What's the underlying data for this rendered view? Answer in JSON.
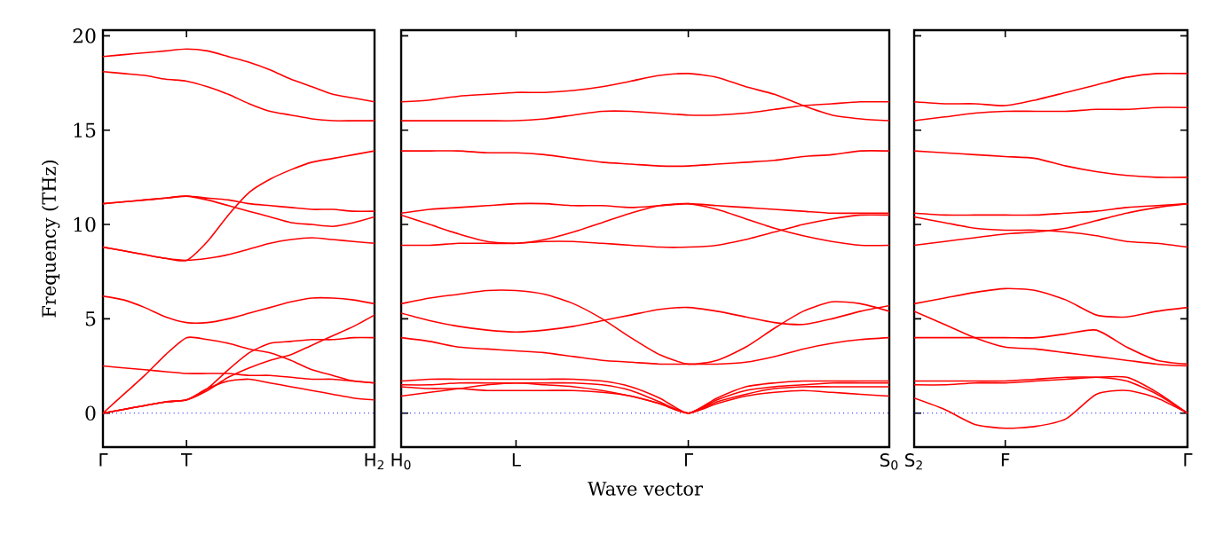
{
  "chart_data": [
    {
      "type": "line",
      "ylabel": "Frequency (THz)",
      "ylim": [
        -1.8,
        20.3
      ],
      "yticks": [
        0,
        5,
        10,
        15,
        20
      ],
      "categories": [
        "Γ",
        null,
        null,
        null,
        "T",
        null,
        null,
        null,
        null,
        null,
        null,
        null,
        null,
        "H$_{2}$"
      ],
      "ref_lines": [
        {
          "axis": "y",
          "value": 0,
          "color": "#0000ff",
          "line_style": "dotted"
        }
      ],
      "series": [
        {
          "color": "#ff0000",
          "values": [
            18.9,
            19.0,
            19.1,
            19.2,
            19.3,
            19.2,
            18.9,
            18.6,
            18.2,
            17.7,
            17.3,
            16.9,
            16.7,
            16.5
          ]
        },
        {
          "color": "#ff0000",
          "values": [
            18.1,
            18.0,
            17.9,
            17.7,
            17.6,
            17.3,
            16.9,
            16.4,
            16.0,
            15.8,
            15.6,
            15.5,
            15.5,
            15.5
          ]
        },
        {
          "color": "#ff0000",
          "values": [
            11.1,
            11.2,
            11.3,
            11.4,
            11.5,
            11.4,
            11.3,
            11.1,
            11.0,
            10.9,
            10.8,
            10.8,
            10.7,
            10.7
          ]
        },
        {
          "color": "#ff0000",
          "values": [
            11.1,
            11.2,
            11.3,
            11.4,
            11.5,
            11.3,
            11.0,
            10.7,
            10.4,
            10.1,
            10.0,
            9.9,
            10.1,
            10.4
          ]
        },
        {
          "color": "#ff0000",
          "values": [
            8.8,
            8.6,
            8.4,
            8.2,
            8.1,
            8.2,
            8.4,
            8.7,
            9.0,
            9.2,
            9.3,
            9.2,
            9.1,
            9.0
          ]
        },
        {
          "color": "#ff0000",
          "values": [
            8.8,
            8.6,
            8.4,
            8.2,
            8.1,
            9.1,
            10.5,
            11.7,
            12.4,
            12.9,
            13.3,
            13.5,
            13.7,
            13.9
          ]
        },
        {
          "color": "#ff0000",
          "values": [
            6.2,
            6.0,
            5.6,
            5.1,
            4.8,
            4.8,
            5.0,
            5.3,
            5.6,
            5.9,
            6.1,
            6.1,
            6.0,
            5.8
          ]
        },
        {
          "color": "#ff0000",
          "values": [
            2.5,
            2.4,
            2.3,
            2.2,
            2.1,
            2.1,
            2.1,
            2.0,
            2.0,
            1.9,
            1.8,
            1.8,
            1.7,
            1.6
          ]
        },
        {
          "color": "#ff0000",
          "values": [
            0,
            1.0,
            2.0,
            3.1,
            4.0,
            3.9,
            3.7,
            3.4,
            3.2,
            2.8,
            2.3,
            2.0,
            1.7,
            1.6
          ]
        },
        {
          "color": "#ff0000",
          "values": [
            0,
            0.2,
            0.4,
            0.6,
            0.7,
            1.3,
            2.3,
            3.2,
            3.7,
            3.8,
            3.9,
            3.9,
            4.0,
            4.0
          ]
        },
        {
          "color": "#ff0000",
          "values": [
            0,
            0.2,
            0.4,
            0.6,
            0.7,
            1.2,
            1.9,
            2.4,
            2.8,
            3.1,
            3.6,
            4.1,
            4.6,
            5.2
          ]
        },
        {
          "color": "#ff0000",
          "values": [
            0,
            0.2,
            0.4,
            0.6,
            0.7,
            1.3,
            1.7,
            1.8,
            1.6,
            1.4,
            1.2,
            1.0,
            0.8,
            0.7
          ]
        }
      ]
    },
    {
      "type": "line",
      "xlabel": "Wave vector",
      "ylim": [
        -1.8,
        20.3
      ],
      "yticks": [
        0,
        5,
        10,
        15,
        20
      ],
      "tick_labels": "x",
      "categories": [
        "H$_{0}$",
        null,
        null,
        null,
        "L",
        null,
        null,
        null,
        null,
        null,
        "Γ",
        null,
        null,
        null,
        null,
        null,
        null,
        "S$_{0}$"
      ],
      "ref_lines": [
        {
          "axis": "y",
          "value": 0,
          "color": "#0000ff",
          "line_style": "dotted"
        }
      ],
      "series": [
        {
          "color": "#ff0000",
          "values": [
            16.5,
            16.6,
            16.8,
            16.9,
            17.0,
            17.0,
            17.1,
            17.3,
            17.6,
            17.9,
            18.0,
            17.8,
            17.3,
            16.9,
            16.3,
            15.8,
            15.6,
            15.5
          ]
        },
        {
          "color": "#ff0000",
          "values": [
            15.5,
            15.5,
            15.5,
            15.5,
            15.5,
            15.6,
            15.8,
            16.0,
            16.0,
            15.9,
            15.8,
            15.8,
            15.9,
            16.1,
            16.3,
            16.4,
            16.5,
            16.5
          ]
        },
        {
          "color": "#ff0000",
          "values": [
            13.9,
            13.9,
            13.9,
            13.8,
            13.8,
            13.7,
            13.5,
            13.3,
            13.2,
            13.1,
            13.1,
            13.2,
            13.3,
            13.4,
            13.6,
            13.7,
            13.9,
            13.9
          ]
        },
        {
          "color": "#ff0000",
          "values": [
            10.6,
            10.8,
            10.9,
            11.0,
            11.1,
            11.1,
            11.0,
            11.0,
            10.9,
            11.0,
            11.1,
            11.0,
            10.9,
            10.8,
            10.7,
            10.6,
            10.6,
            10.6
          ]
        },
        {
          "color": "#ff0000",
          "values": [
            10.5,
            10.0,
            9.5,
            9.1,
            9.0,
            9.2,
            9.6,
            10.1,
            10.6,
            11.0,
            11.1,
            10.8,
            10.3,
            9.8,
            9.4,
            9.1,
            8.9,
            8.9
          ]
        },
        {
          "color": "#ff0000",
          "values": [
            8.9,
            8.9,
            9.0,
            9.0,
            9.0,
            9.1,
            9.1,
            9.0,
            8.9,
            8.8,
            8.8,
            8.9,
            9.2,
            9.6,
            10.0,
            10.3,
            10.5,
            10.5
          ]
        },
        {
          "color": "#ff0000",
          "values": [
            5.8,
            6.1,
            6.3,
            6.5,
            6.5,
            6.3,
            5.8,
            5.0,
            4.0,
            3.1,
            2.6,
            2.8,
            3.5,
            4.5,
            5.4,
            5.9,
            5.8,
            5.4
          ]
        },
        {
          "color": "#ff0000",
          "values": [
            5.3,
            4.9,
            4.6,
            4.4,
            4.3,
            4.4,
            4.6,
            4.9,
            5.2,
            5.5,
            5.6,
            5.4,
            5.1,
            4.8,
            4.7,
            5.0,
            5.4,
            5.7
          ]
        },
        {
          "color": "#ff0000",
          "values": [
            4.0,
            3.8,
            3.5,
            3.4,
            3.3,
            3.2,
            3.0,
            2.8,
            2.7,
            2.6,
            2.6,
            2.6,
            2.7,
            3.0,
            3.4,
            3.7,
            3.9,
            4.0
          ]
        },
        {
          "color": "#ff0000",
          "values": [
            1.7,
            1.8,
            1.8,
            1.8,
            1.8,
            1.8,
            1.8,
            1.7,
            1.4,
            0.8,
            0,
            0.8,
            1.4,
            1.6,
            1.7,
            1.7,
            1.7,
            1.7
          ]
        },
        {
          "color": "#ff0000",
          "values": [
            1.5,
            1.5,
            1.6,
            1.6,
            1.6,
            1.6,
            1.6,
            1.5,
            1.2,
            0.6,
            0,
            0.7,
            1.2,
            1.4,
            1.5,
            1.6,
            1.6,
            1.6
          ]
        },
        {
          "color": "#ff0000",
          "values": [
            0.9,
            1.1,
            1.3,
            1.5,
            1.6,
            1.5,
            1.4,
            1.2,
            0.9,
            0.5,
            0,
            0.5,
            0.9,
            1.1,
            1.2,
            1.1,
            1.0,
            0.9
          ]
        },
        {
          "color": "#ff0000",
          "values": [
            1.4,
            1.3,
            1.3,
            1.2,
            1.2,
            1.2,
            1.2,
            1.1,
            0.9,
            0.5,
            0,
            0.6,
            1.0,
            1.3,
            1.4,
            1.4,
            1.4,
            1.4
          ]
        }
      ]
    },
    {
      "type": "line",
      "ylim": [
        -1.8,
        20.3
      ],
      "yticks": [
        0,
        5,
        10,
        15,
        20
      ],
      "tick_labels": "x",
      "categories": [
        "S$_{2}$",
        null,
        null,
        "F",
        null,
        null,
        null,
        null,
        null,
        "Γ"
      ],
      "ref_lines": [
        {
          "axis": "y",
          "value": 0,
          "color": "#0000ff",
          "line_style": "dotted"
        }
      ],
      "series": [
        {
          "color": "#ff0000",
          "values": [
            16.5,
            16.4,
            16.4,
            16.3,
            16.6,
            17.0,
            17.4,
            17.8,
            18.0,
            18.0
          ]
        },
        {
          "color": "#ff0000",
          "values": [
            15.5,
            15.7,
            15.9,
            16.0,
            16.0,
            16.0,
            16.1,
            16.1,
            16.2,
            16.2
          ]
        },
        {
          "color": "#ff0000",
          "values": [
            13.9,
            13.8,
            13.7,
            13.6,
            13.5,
            13.1,
            12.8,
            12.6,
            12.5,
            12.5
          ]
        },
        {
          "color": "#ff0000",
          "values": [
            10.6,
            10.5,
            10.5,
            10.5,
            10.5,
            10.6,
            10.7,
            10.9,
            11.0,
            11.1
          ]
        },
        {
          "color": "#ff0000",
          "values": [
            10.4,
            10.1,
            9.8,
            9.7,
            9.7,
            9.6,
            9.4,
            9.1,
            9.0,
            8.8
          ]
        },
        {
          "color": "#ff0000",
          "values": [
            8.9,
            9.1,
            9.3,
            9.5,
            9.6,
            9.8,
            10.2,
            10.6,
            10.9,
            11.1
          ]
        },
        {
          "color": "#ff0000",
          "values": [
            5.8,
            6.1,
            6.4,
            6.6,
            6.5,
            6.0,
            5.2,
            5.1,
            5.4,
            5.6
          ]
        },
        {
          "color": "#ff0000",
          "values": [
            5.4,
            4.7,
            4.0,
            3.5,
            3.4,
            3.2,
            3.0,
            2.8,
            2.6,
            2.5
          ]
        },
        {
          "color": "#ff0000",
          "values": [
            4.0,
            4.0,
            4.0,
            4.0,
            4.0,
            4.2,
            4.4,
            3.5,
            2.8,
            2.6
          ]
        },
        {
          "color": "#ff0000",
          "values": [
            1.7,
            1.7,
            1.7,
            1.7,
            1.8,
            1.9,
            1.9,
            1.7,
            1.0,
            0
          ]
        },
        {
          "color": "#ff0000",
          "values": [
            1.5,
            1.5,
            1.6,
            1.6,
            1.7,
            1.8,
            1.9,
            1.9,
            1.1,
            0
          ]
        },
        {
          "color": "#ff0000",
          "values": [
            0.8,
            0.2,
            -0.6,
            -0.8,
            -0.7,
            -0.3,
            1.0,
            1.2,
            0.8,
            0
          ]
        }
      ]
    }
  ]
}
